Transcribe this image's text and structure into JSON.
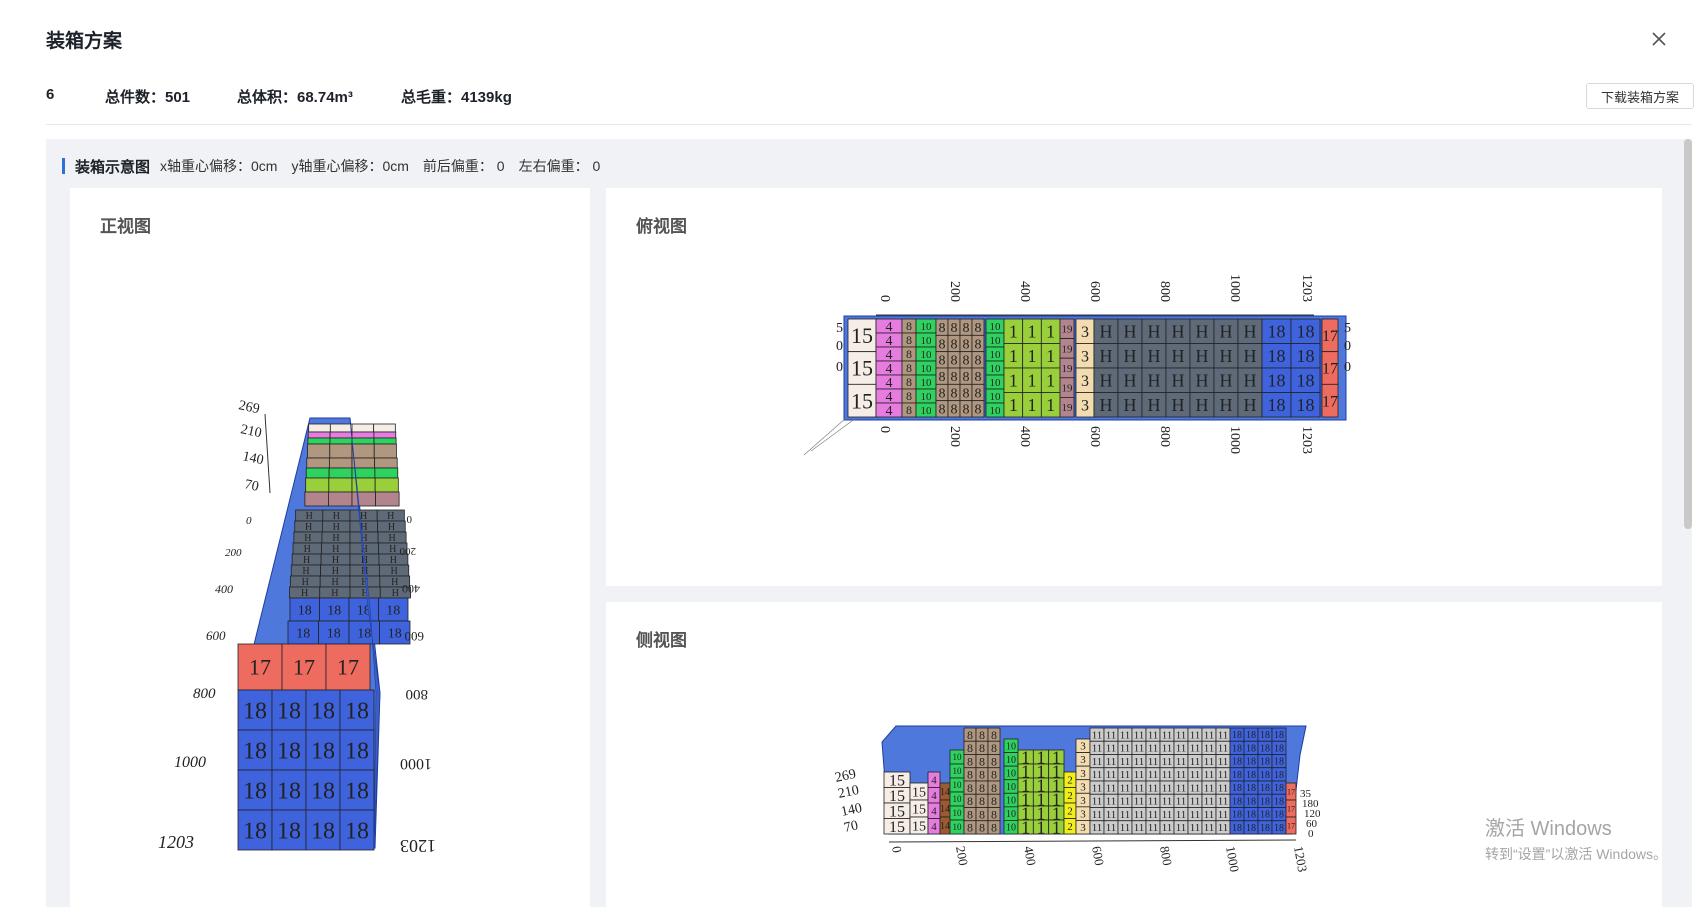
{
  "dialog": {
    "title": "装箱方案",
    "download_label": "下载装箱方案"
  },
  "summary": {
    "index": "6",
    "total_count": "总件数：501",
    "total_volume": "总体积：68.74m³",
    "total_gross_weight": "总毛重：4139kg"
  },
  "diagram_section": {
    "title": "装箱示意图",
    "x_offset": "x轴重心偏移：0cm",
    "y_offset": "y轴重心偏移：0cm",
    "front_back_bias": "前后偏重：  0",
    "left_right_bias": "左右偏重：  0"
  },
  "views": {
    "front": {
      "title": "正视图",
      "height_ticks": [
        "269",
        "210",
        "140",
        "70"
      ],
      "length_ticks": [
        "0",
        "200",
        "400",
        "600",
        "800",
        "1000",
        "1203"
      ],
      "box_labels": [
        "18",
        "17",
        "H",
        "3",
        "1",
        "10",
        "8"
      ]
    },
    "top": {
      "title": "俯视图",
      "length_ticks": [
        "0",
        "200",
        "400",
        "600",
        "800",
        "1000",
        "1203"
      ],
      "width_ticks": [
        "5",
        "0",
        "0"
      ],
      "box_labels": [
        "15",
        "4",
        "8",
        "10",
        "8",
        "10",
        "1",
        "19",
        "3",
        "H",
        "18",
        "17"
      ]
    },
    "side": {
      "title": "侧视图",
      "height_ticks": [
        "269",
        "210",
        "140",
        "70"
      ],
      "length_ticks": [
        "0",
        "200",
        "400",
        "600",
        "800",
        "1000",
        "1203"
      ],
      "width_ticks": [
        "35",
        "180",
        "120",
        "60",
        "0"
      ],
      "box_labels": [
        "15",
        "4",
        "8",
        "1",
        "2",
        "3",
        "11",
        "18"
      ]
    }
  },
  "box_colors": {
    "15": "#f5ede6",
    "4": "#e67ce0",
    "8": "#b09880",
    "10": "#2ed35f",
    "1": "#99cf3a",
    "19": "#b2858e",
    "3": "#f2dcb0",
    "H": "#5f6a78",
    "18": "#3f63dd",
    "17": "#ee6b5f",
    "2": "#f2ee1a",
    "14": "#9c5a32"
  },
  "watermark": {
    "line1": "激活 Windows",
    "line2": "转到“设置”以激活 Windows。"
  }
}
